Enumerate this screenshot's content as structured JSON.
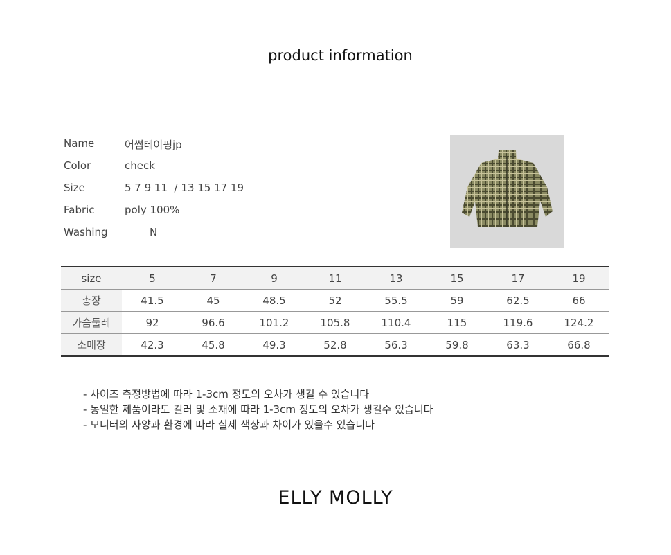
{
  "title": "product information",
  "info": [
    {
      "label": "Name",
      "value": "어썸테이핑jp"
    },
    {
      "label": "Color",
      "value": "check"
    },
    {
      "label": "Size",
      "value": "5 7 9 11  / 13 15 17 19"
    },
    {
      "label": "Fabric",
      "value": "poly 100%"
    },
    {
      "label": "Washing",
      "value": "N"
    }
  ],
  "table": {
    "header": [
      "size",
      "5",
      "7",
      "9",
      "11",
      "13",
      "15",
      "17",
      "19"
    ],
    "rows": [
      [
        "총장",
        "41.5",
        "45",
        "48.5",
        "52",
        "55.5",
        "59",
        "62.5",
        "66"
      ],
      [
        "가슴둘레",
        "92",
        "96.6",
        "101.2",
        "105.8",
        "110.4",
        "115",
        "119.6",
        "124.2"
      ],
      [
        "소매장",
        "42.3",
        "45.8",
        "49.3",
        "52.8",
        "56.3",
        "59.8",
        "63.3",
        "66.8"
      ]
    ]
  },
  "notes": [
    "- 사이즈 측정방법에 따라 1-3cm 정도의 오차가 생길 수 있습니다",
    "- 동일한 제품이라도 컬러 및 소재에 따라 1-3cm 정도의 오차가 생길수 있습니다",
    "- 모니터의 사양과 환경에 따라 실제 색상과 차이가 있을수 있습니다"
  ],
  "brand": "ELLY MOLLY"
}
